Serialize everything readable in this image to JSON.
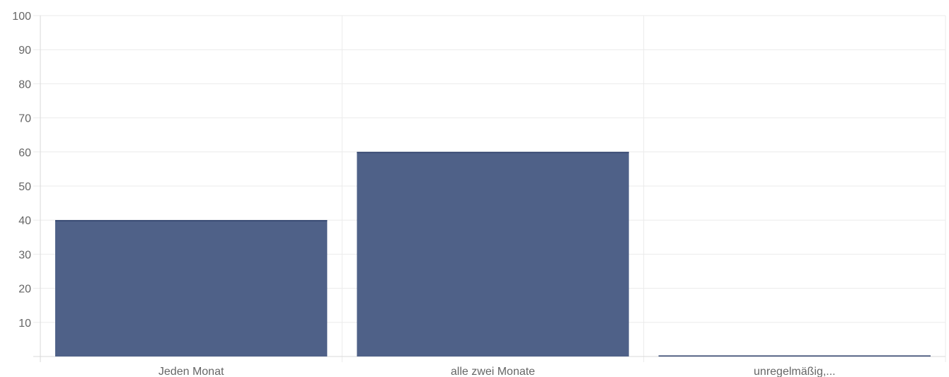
{
  "chart_data": {
    "type": "bar",
    "categories": [
      "Jeden Monat",
      "alle zwei Monate",
      "unregelmäßig,..."
    ],
    "values": [
      40,
      60,
      0
    ],
    "ylim": [
      0,
      100
    ],
    "y_ticks": [
      "100",
      "90",
      "80",
      "70",
      "60",
      "50",
      "40",
      "30",
      "20",
      "10"
    ],
    "grid": true,
    "bar_color": "#4f6188",
    "bar_edge_color": "#2f416b",
    "grid_color": "#ebebeb"
  }
}
